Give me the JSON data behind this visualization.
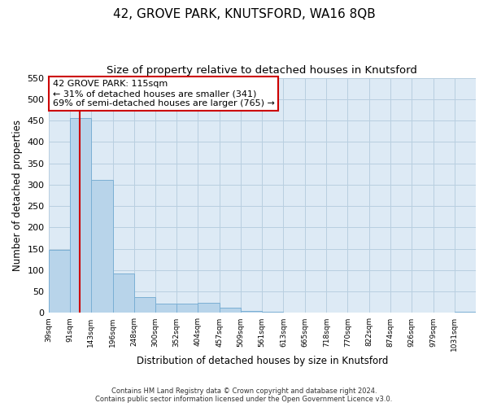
{
  "title": "42, GROVE PARK, KNUTSFORD, WA16 8QB",
  "subtitle": "Size of property relative to detached houses in Knutsford",
  "xlabel": "Distribution of detached houses by size in Knutsford",
  "ylabel": "Number of detached properties",
  "bar_edges": [
    39,
    91,
    143,
    196,
    248,
    300,
    352,
    404,
    457,
    509,
    561,
    613,
    665,
    718,
    770,
    822,
    874,
    926,
    979,
    1031,
    1083
  ],
  "bar_heights": [
    148,
    455,
    311,
    93,
    37,
    22,
    22,
    24,
    12,
    5,
    2,
    1,
    0,
    0,
    0,
    0,
    0,
    0,
    0,
    3
  ],
  "bar_color": "#b8d4ea",
  "bar_edge_color": "#7bafd4",
  "property_line_x": 115,
  "property_line_color": "#cc0000",
  "ylim": [
    0,
    550
  ],
  "yticks": [
    0,
    50,
    100,
    150,
    200,
    250,
    300,
    350,
    400,
    450,
    500,
    550
  ],
  "annotation_title": "42 GROVE PARK: 115sqm",
  "annotation_line1": "← 31% of detached houses are smaller (341)",
  "annotation_line2": "69% of semi-detached houses are larger (765) →",
  "annotation_box_color": "#ffffff",
  "annotation_box_edge_color": "#cc0000",
  "footer_line1": "Contains HM Land Registry data © Crown copyright and database right 2024.",
  "footer_line2": "Contains public sector information licensed under the Open Government Licence v3.0.",
  "background_color": "#ffffff",
  "plot_bg_color": "#ddeaf5",
  "grid_color": "#b8cfe0",
  "title_fontsize": 11,
  "subtitle_fontsize": 9.5
}
